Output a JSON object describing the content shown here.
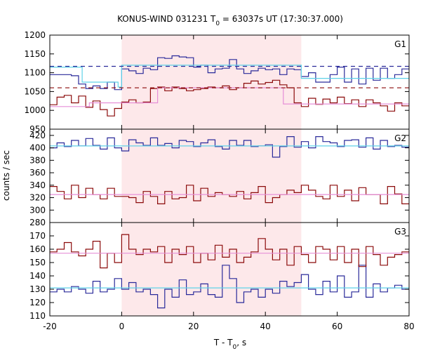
{
  "chart_data": {
    "type": "line",
    "title": "KONUS-WIND 031231 T",
    "title_sub": "0",
    "title_rest": " = 63037s UT (17:30:37.000)",
    "xlabel": "T - T",
    "xlabel_sub": "0",
    "xlabel_rest": ", s",
    "ylabel": "counts / sec",
    "xlim": [
      -20,
      80
    ],
    "x_ticks": [
      "-20",
      "0",
      "20",
      "40",
      "60",
      "80"
    ],
    "highlight_interval": [
      0,
      50
    ],
    "colors": {
      "raw_blue": "#2a2a9a",
      "raw_red": "#8b0a0a",
      "fit_cyan": "#5fd2e8",
      "fit_pink": "#e68fd8",
      "highlight": "#fde8ea"
    },
    "panels": [
      {
        "label": "G1",
        "ylim": [
          950,
          1200
        ],
        "y_ticks": [
          950,
          1000,
          1050,
          1100,
          1150,
          1200
        ],
        "series": [
          {
            "color_key": "raw_blue",
            "style": "step",
            "values": [
              1095,
              1095,
              1095,
              1092,
              1070,
              1058,
              1065,
              1058,
              1075,
              1055,
              1110,
              1105,
              1098,
              1112,
              1108,
              1140,
              1138,
              1145,
              1142,
              1140,
              1115,
              1120,
              1100,
              1110,
              1112,
              1135,
              1110,
              1098,
              1105,
              1112,
              1108,
              1110,
              1095,
              1110,
              1108,
              1090,
              1100,
              1075,
              1075,
              1095,
              1115,
              1075,
              1110,
              1070,
              1112,
              1080,
              1112,
              1085,
              1095,
              1110
            ]
          },
          {
            "color_key": "raw_red",
            "style": "step",
            "values": [
              1015,
              1035,
              1040,
              1020,
              1038,
              1008,
              1025,
              1002,
              985,
              1005,
              1022,
              1028,
              1020,
              1022,
              1058,
              1062,
              1052,
              1062,
              1058,
              1052,
              1055,
              1058,
              1062,
              1060,
              1065,
              1055,
              1060,
              1072,
              1078,
              1070,
              1074,
              1080,
              1068,
              1060,
              1020,
              1010,
              1032,
              1016,
              1030,
              1020,
              1035,
              1018,
              1028,
              1010,
              1028,
              1020,
              1012,
              998,
              1020,
              1012
            ]
          },
          {
            "color_key": "fit_cyan",
            "style": "step",
            "breaks": [
              -20,
              -11,
              -1,
              0,
              50,
              60,
              80
            ],
            "levels": [
              1115,
              1075,
              1062,
              1120,
              1085,
              1085
            ]
          },
          {
            "color_key": "fit_pink",
            "style": "step",
            "breaks": [
              -20,
              -9,
              0,
              10,
              45,
              80
            ],
            "levels": [
              1010,
              1020,
              1020,
              1060,
              1017
            ]
          },
          {
            "color_key": "raw_blue",
            "style": "dashed",
            "level": 1117
          },
          {
            "color_key": "raw_red",
            "style": "dashed",
            "level": 1060
          }
        ]
      },
      {
        "label": "G2",
        "ylim": [
          280,
          430
        ],
        "y_ticks": [
          280,
          300,
          320,
          340,
          360,
          380,
          400,
          420
        ],
        "series": [
          {
            "color_key": "raw_blue",
            "style": "step",
            "values": [
              400,
              408,
              402,
              412,
              403,
              415,
              404,
              398,
              416,
              400,
              395,
              413,
              408,
              404,
              416,
              404,
              407,
              400,
              412,
              410,
              402,
              408,
              413,
              402,
              398,
              412,
              404,
              412,
              402,
              403,
              405,
              385,
              402,
              418,
              401,
              410,
              400,
              418,
              410,
              408,
              402,
              412,
              413,
              401,
              416,
              398,
              412,
              402,
              404,
              401
            ]
          },
          {
            "color_key": "raw_red",
            "style": "step",
            "values": [
              338,
              330,
              318,
              340,
              320,
              335,
              325,
              318,
              335,
              322,
              322,
              320,
              312,
              330,
              322,
              310,
              330,
              318,
              320,
              340,
              315,
              335,
              322,
              328,
              325,
              322,
              330,
              318,
              328,
              338,
              312,
              320,
              325,
              332,
              328,
              340,
              332,
              322,
              318,
              340,
              322,
              332,
              315,
              336,
              325,
              325,
              310,
              338,
              326,
              310
            ]
          },
          {
            "color_key": "fit_cyan",
            "style": "step",
            "breaks": [
              -20,
              80
            ],
            "levels": [
              403
            ]
          },
          {
            "color_key": "fit_pink",
            "style": "step",
            "breaks": [
              -20,
              80
            ],
            "levels": [
              325
            ]
          }
        ]
      },
      {
        "label": "G3",
        "ylim": [
          110,
          180
        ],
        "y_ticks": [
          110,
          120,
          130,
          140,
          150,
          160,
          170
        ],
        "series": [
          {
            "color_key": "raw_blue",
            "style": "step",
            "values": [
              128,
              130,
              128,
              132,
              130,
              127,
              136,
              128,
              130,
              138,
              130,
              135,
              128,
              130,
              126,
              116,
              130,
              124,
              137,
              126,
              128,
              134,
              126,
              124,
              148,
              138,
              120,
              128,
              130,
              124,
              130,
              127,
              136,
              132,
              135,
              141,
              130,
              126,
              136,
              128,
              140,
              124,
              128,
              148,
              124,
              134,
              128,
              131,
              133,
              130
            ]
          },
          {
            "color_key": "raw_red",
            "style": "step",
            "values": [
              158,
              160,
              165,
              158,
              155,
              160,
              166,
              146,
              157,
              150,
              171,
              160,
              156,
              160,
              158,
              162,
              150,
              160,
              156,
              162,
              150,
              157,
              152,
              163,
              154,
              160,
              150,
              154,
              158,
              168,
              160,
              152,
              160,
              148,
              162,
              156,
              150,
              162,
              160,
              152,
              162,
              150,
              160,
              147,
              162,
              156,
              148,
              154,
              156,
              158
            ]
          },
          {
            "color_key": "fit_cyan",
            "style": "step",
            "breaks": [
              -20,
              80
            ],
            "levels": [
              131
            ]
          },
          {
            "color_key": "fit_pink",
            "style": "step",
            "breaks": [
              -20,
              80
            ],
            "levels": [
              157
            ]
          }
        ]
      }
    ]
  }
}
